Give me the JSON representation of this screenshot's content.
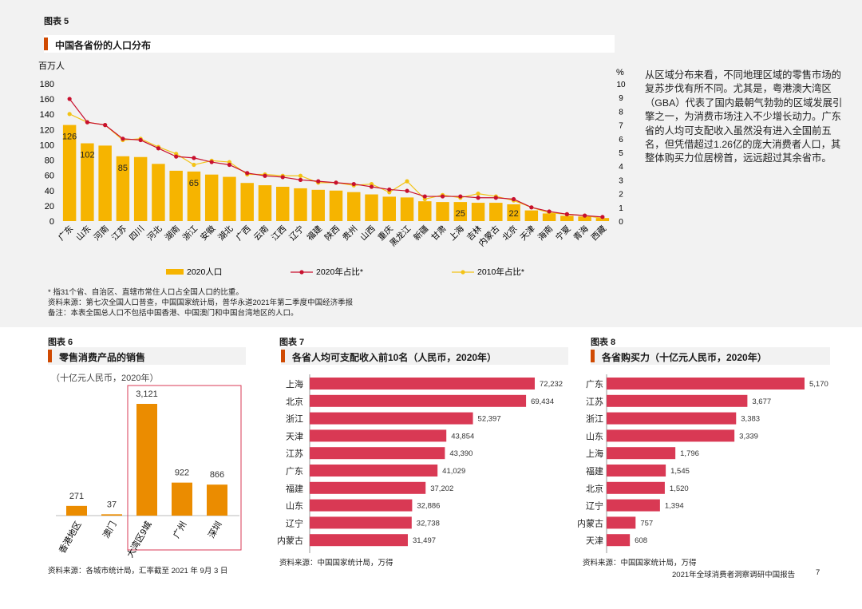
{
  "fig5": {
    "label": "图表 5",
    "title": "中国各省份的人口分布",
    "left_unit": "百万人",
    "right_unit": "%",
    "legend": [
      "2020人口",
      "2020年占比*",
      "2010年占比*"
    ],
    "notes": [
      "* 指31个省、自治区、直辖市常住人口占全国人口的比重。",
      "资料来源：第七次全国人口普查，中国国家统计局，普华永道2021年第二季度中国经济季报",
      "备注：本表全国总人口不包括中国香港、中国澳门和中国台湾地区的人口。"
    ]
  },
  "side_text": "从区域分布来看，不同地理区域的零售市场的复苏步伐有所不同。尤其是，粤港澳大湾区（GBA）代表了国内最朝气勃勃的区域发展引擎之一，为消费市场注入不少增长动力。广东省的人均可支配收入虽然没有进入全国前五名，但凭借超过1.26亿的庞大消费者人口，其整体购买力位居榜首，远远超过其余省市。",
  "fig6": {
    "label": "图表 6",
    "title": "零售消费产品的销售",
    "unit": "（十亿元人民币，2020年）",
    "source": "资料来源：各城市统计局，汇率截至 2021 年 9月 3 日"
  },
  "fig7": {
    "label": "图表 7",
    "title": "各省人均可支配收入前10名（人民币，2020年）",
    "source": "资料来源：中国国家统计局，万得"
  },
  "fig8": {
    "label": "图表 8",
    "title": "各省购买力（十亿元人民币，2020年）",
    "source": "资料来源：中国国家统计局，万得"
  },
  "footer": "2021年全球消费者洞察调研中国报告",
  "page_number": "7",
  "colors": {
    "orange": "#f6b400",
    "red_line": "#c8102e",
    "yellow_line": "#f3c315",
    "bar6": "#eb8c00",
    "bar_pink": "#d93954",
    "accent": "#d04a02"
  },
  "chart_data": [
    {
      "id": "fig5",
      "type": "bar",
      "title": "中国各省份的人口分布",
      "categories": [
        "广东",
        "山东",
        "河南",
        "江苏",
        "四川",
        "河北",
        "湖南",
        "浙江",
        "安徽",
        "湖北",
        "广西",
        "云南",
        "江西",
        "辽宁",
        "福建",
        "陕西",
        "贵州",
        "山西",
        "重庆",
        "黑龙江",
        "新疆",
        "甘肃",
        "上海",
        "吉林",
        "内蒙古",
        "北京",
        "天津",
        "海南",
        "宁夏",
        "青海",
        "西藏"
      ],
      "series": [
        {
          "name": "2020人口",
          "axis": "left",
          "values": [
            126,
            102,
            99,
            85,
            84,
            75,
            66,
            65,
            61,
            58,
            50,
            47,
            45,
            43,
            41,
            40,
            38,
            35,
            32,
            31,
            26,
            25,
            25,
            24,
            24,
            22,
            14,
            10,
            7,
            6,
            4
          ]
        },
        {
          "name": "2020年占比*",
          "axis": "right",
          "values": [
            8.9,
            7.2,
            7.0,
            6.0,
            5.9,
            5.3,
            4.7,
            4.6,
            4.3,
            4.1,
            3.5,
            3.3,
            3.2,
            3.0,
            2.9,
            2.8,
            2.7,
            2.5,
            2.3,
            2.2,
            1.8,
            1.8,
            1.8,
            1.7,
            1.7,
            1.6,
            1.0,
            0.7,
            0.5,
            0.4,
            0.3
          ]
        },
        {
          "name": "2010年占比*",
          "axis": "right",
          "values": [
            7.8,
            7.2,
            7.0,
            5.9,
            6.0,
            5.4,
            4.9,
            4.1,
            4.4,
            4.3,
            3.4,
            3.4,
            3.3,
            3.3,
            2.8,
            2.8,
            2.6,
            2.7,
            2.1,
            2.9,
            1.6,
            1.9,
            1.7,
            2.0,
            1.8,
            1.5,
            1.0,
            0.6,
            0.5,
            0.4,
            0.2
          ]
        }
      ],
      "data_labels": {
        "广东": "126",
        "山东": "102",
        "江苏": "85",
        "浙江": "65",
        "上海": "25",
        "北京": "22"
      },
      "ylim_left": [
        0,
        180
      ],
      "yticks_left": [
        "0",
        "20",
        "40",
        "60",
        "80",
        "100",
        "120",
        "140",
        "160",
        "180"
      ],
      "ylim_right": [
        0,
        10
      ],
      "yticks_right": [
        "0",
        "1",
        "2",
        "3",
        "4",
        "5",
        "6",
        "7",
        "8",
        "9",
        "10"
      ],
      "ylabel_left": "百万人",
      "ylabel_right": "%"
    },
    {
      "id": "fig6",
      "type": "bar",
      "title": "零售消费产品的销售",
      "categories": [
        "香港地区",
        "澳门",
        "大湾区9城",
        "广州",
        "深圳"
      ],
      "values": [
        271,
        37,
        3121,
        922,
        866
      ],
      "value_labels": [
        "271",
        "37",
        "3,121",
        "922",
        "866"
      ],
      "highlight": [
        "大湾区9城",
        "广州",
        "深圳"
      ],
      "unit": "十亿元人民币，2020年"
    },
    {
      "id": "fig7",
      "type": "bar",
      "orientation": "horizontal",
      "title": "各省人均可支配收入前10名（人民币，2020年）",
      "categories": [
        "上海",
        "北京",
        "浙江",
        "天津",
        "江苏",
        "广东",
        "福建",
        "山东",
        "辽宁",
        "内蒙古"
      ],
      "values": [
        72232,
        69434,
        52397,
        43854,
        43390,
        41029,
        37202,
        32886,
        32738,
        31497
      ],
      "value_labels": [
        "72,232",
        "69,434",
        "52,397",
        "43,854",
        "43,390",
        "41,029",
        "37,202",
        "32,886",
        "32,738",
        "31,497"
      ]
    },
    {
      "id": "fig8",
      "type": "bar",
      "orientation": "horizontal",
      "title": "各省购买力（十亿元人民币，2020年）",
      "categories": [
        "广东",
        "江苏",
        "浙江",
        "山东",
        "上海",
        "福建",
        "北京",
        "辽宁",
        "内蒙古",
        "天津"
      ],
      "values": [
        5170,
        3677,
        3383,
        3339,
        1796,
        1545,
        1520,
        1394,
        757,
        608
      ],
      "value_labels": [
        "5,170",
        "3,677",
        "3,383",
        "3,339",
        "1,796",
        "1,545",
        "1,520",
        "1,394",
        "757",
        "608"
      ]
    }
  ]
}
